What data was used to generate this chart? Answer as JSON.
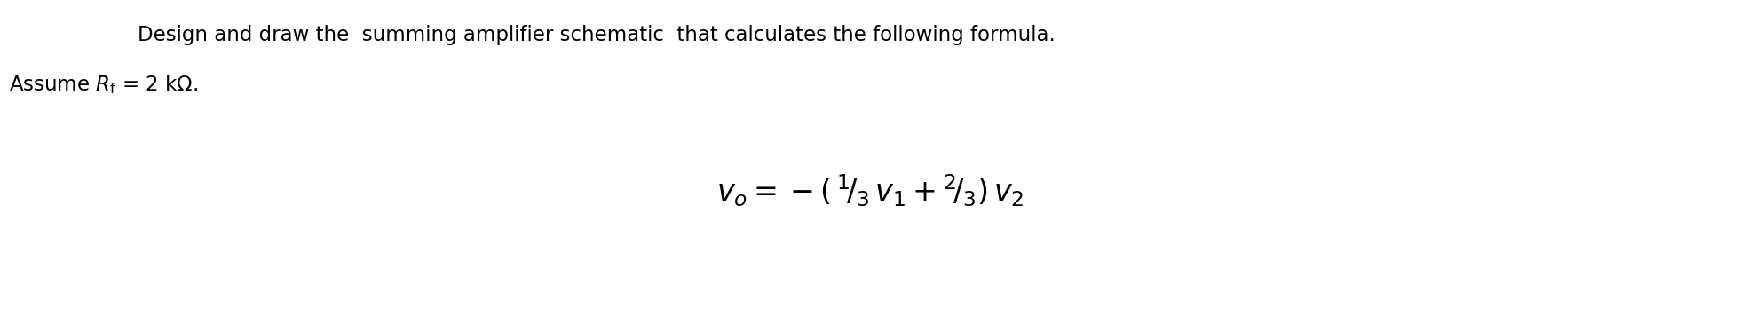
{
  "background_color": "#ffffff",
  "line1": "Design and draw the  summing amplifier schematic  that calculates the following formula.",
  "line2_latex": "Assume $R_\\mathrm{f}$ = 2 k$\\Omega$.",
  "fig_width": 19.6,
  "fig_height": 3.48,
  "dpi": 100,
  "line1_fontsize": 16.5,
  "line2_fontsize": 16.5,
  "formula_fontsize": 24
}
